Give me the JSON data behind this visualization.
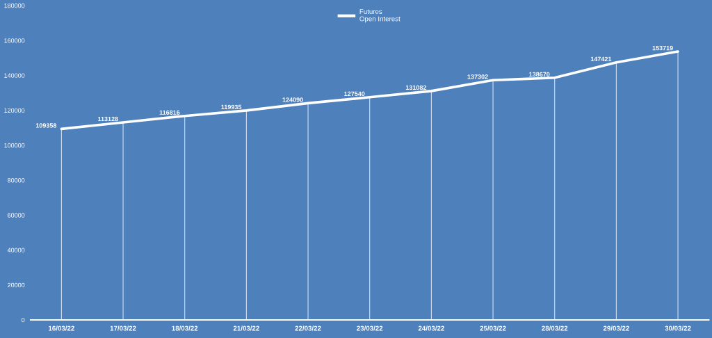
{
  "chart_data": {
    "type": "line",
    "categories": [
      "16/03/22",
      "17/03/22",
      "18/03/22",
      "21/03/22",
      "22/03/22",
      "23/03/22",
      "24/03/22",
      "25/03/22",
      "28/03/22",
      "29/03/22",
      "30/03/22"
    ],
    "series": [
      {
        "name": "Futures Open Interest",
        "color": "#ffffff",
        "values": [
          109358,
          113128,
          116816,
          119935,
          124090,
          127540,
          131082,
          137302,
          138670,
          147421,
          153719
        ],
        "value_labels": [
          "109358",
          "113128",
          "116816",
          "119935",
          "124090",
          "127540",
          "131082",
          "137302",
          "138670",
          "147421",
          "153719"
        ]
      }
    ],
    "ylim": [
      0,
      180000
    ],
    "yticks": [
      0,
      20000,
      40000,
      60000,
      80000,
      100000,
      120000,
      140000,
      160000,
      180000
    ],
    "grid": "x",
    "legend": "top",
    "line_style": "solid"
  }
}
